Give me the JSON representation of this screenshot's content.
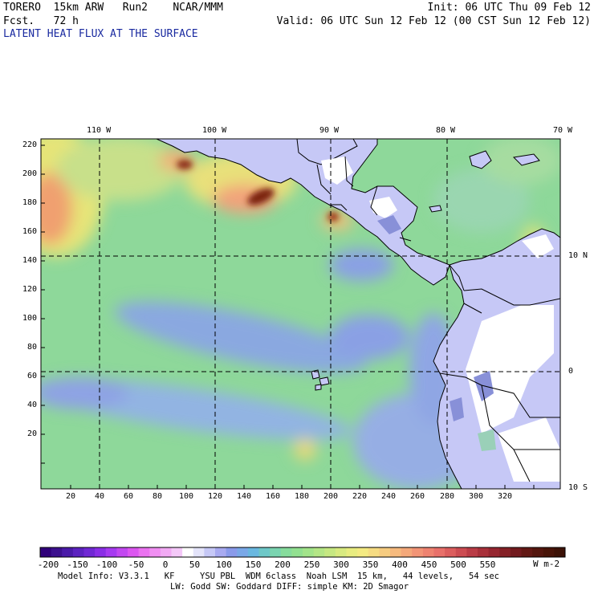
{
  "header": {
    "model": "TORERO  15km ARW   Run2    NCAR/MMM",
    "forecast": "Fcst.   72 h",
    "init": "Init: 06 UTC Thu 09 Feb 12",
    "valid": "Valid: 06 UTC Sun 12 Feb 12 (00 CST Sun 12 Feb 12)",
    "field_title": "LATENT HEAT FLUX AT THE SURFACE"
  },
  "map": {
    "lon_labels": [
      "110 W",
      "100 W",
      "90 W",
      "80 W",
      "70 W"
    ],
    "lat_labels": [
      "10 N",
      "0",
      "10 S"
    ],
    "y_grid_ticks": [
      "220",
      "200",
      "180",
      "160",
      "140",
      "120",
      "100",
      "80",
      "60",
      "40",
      "20"
    ],
    "x_grid_ticks": [
      "20",
      "40",
      "60",
      "80",
      "100",
      "120",
      "140",
      "160",
      "180",
      "200",
      "220",
      "240",
      "260",
      "280",
      "300",
      "320"
    ]
  },
  "colorbar": {
    "labels": [
      "-200",
      "-150",
      "-100",
      "-50",
      "0",
      "50",
      "100",
      "150",
      "200",
      "250",
      "300",
      "350",
      "400",
      "450",
      "500",
      "550"
    ],
    "units": "W m-2"
  },
  "footer": {
    "line1": "Model Info: V3.3.1   KF     YSU PBL  WDM 6class  Noah LSM  15 km,   44 levels,   54 sec",
    "line2": "LW: Godd SW: Goddard DIFF: simple KM: 2D Smagor"
  }
}
